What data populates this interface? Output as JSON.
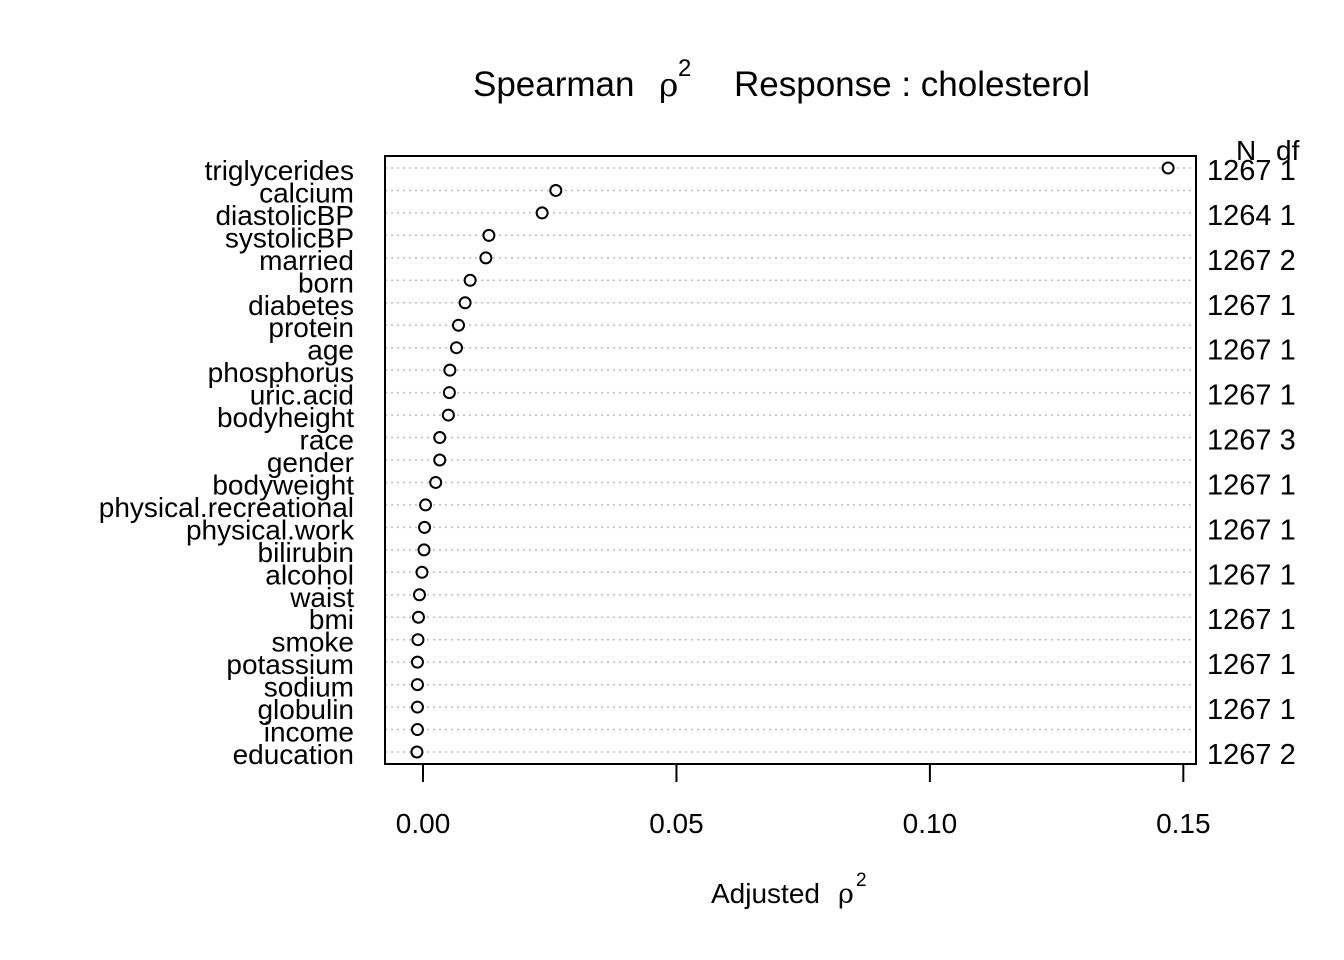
{
  "chart_data": {
    "type": "scatter",
    "style": "dotchart",
    "title_main": "Spearman",
    "title_symbol": "ρ",
    "title_exponent": "2",
    "title_response": "Response : cholesterol",
    "xlabel_main": "Adjusted",
    "xlabel_symbol": "ρ",
    "xlabel_exponent": "2",
    "xlim": [
      -0.0075,
      0.1525
    ],
    "xticks": [
      {
        "value": 0.0,
        "label": "0.00"
      },
      {
        "value": 0.05,
        "label": "0.05"
      },
      {
        "value": 0.1,
        "label": "0.10"
      },
      {
        "value": 0.15,
        "label": "0.15"
      }
    ],
    "right_header": {
      "n": "N",
      "df": "df"
    },
    "grid": "dotted horizontal",
    "points": [
      {
        "label": "triglycerides",
        "value": 0.147,
        "n_df": "1267 1"
      },
      {
        "label": "calcium",
        "value": 0.0262,
        "n_df": null
      },
      {
        "label": "diastolicBP",
        "value": 0.0235,
        "n_df": "1264 1"
      },
      {
        "label": "systolicBP",
        "value": 0.013,
        "n_df": null
      },
      {
        "label": "married",
        "value": 0.0124,
        "n_df": "1267 2"
      },
      {
        "label": "born",
        "value": 0.0093,
        "n_df": null
      },
      {
        "label": "diabetes",
        "value": 0.0083,
        "n_df": "1267 1"
      },
      {
        "label": "protein",
        "value": 0.007,
        "n_df": null
      },
      {
        "label": "age",
        "value": 0.0066,
        "n_df": "1267 1"
      },
      {
        "label": "phosphorus",
        "value": 0.0053,
        "n_df": null
      },
      {
        "label": "uric.acid",
        "value": 0.0052,
        "n_df": "1267 1"
      },
      {
        "label": "bodyheight",
        "value": 0.005,
        "n_df": null
      },
      {
        "label": "race",
        "value": 0.0033,
        "n_df": "1267 3"
      },
      {
        "label": "gender",
        "value": 0.0033,
        "n_df": null
      },
      {
        "label": "bodyweight",
        "value": 0.0025,
        "n_df": "1267 1"
      },
      {
        "label": "physical.recreational",
        "value": 0.0005,
        "n_df": null
      },
      {
        "label": "physical.work",
        "value": 0.0003,
        "n_df": "1267 1"
      },
      {
        "label": "bilirubin",
        "value": 0.0002,
        "n_df": null
      },
      {
        "label": "alcohol",
        "value": -0.0002,
        "n_df": "1267 1"
      },
      {
        "label": "waist",
        "value": -0.0007,
        "n_df": null
      },
      {
        "label": "bmi",
        "value": -0.0009,
        "n_df": "1267 1"
      },
      {
        "label": "smoke",
        "value": -0.001,
        "n_df": null
      },
      {
        "label": "potassium",
        "value": -0.0011,
        "n_df": "1267 1"
      },
      {
        "label": "sodium",
        "value": -0.0011,
        "n_df": null
      },
      {
        "label": "globulin",
        "value": -0.0011,
        "n_df": "1267 1"
      },
      {
        "label": "income",
        "value": -0.0011,
        "n_df": null
      },
      {
        "label": "education",
        "value": -0.0012,
        "n_df": "1267 2"
      }
    ]
  }
}
